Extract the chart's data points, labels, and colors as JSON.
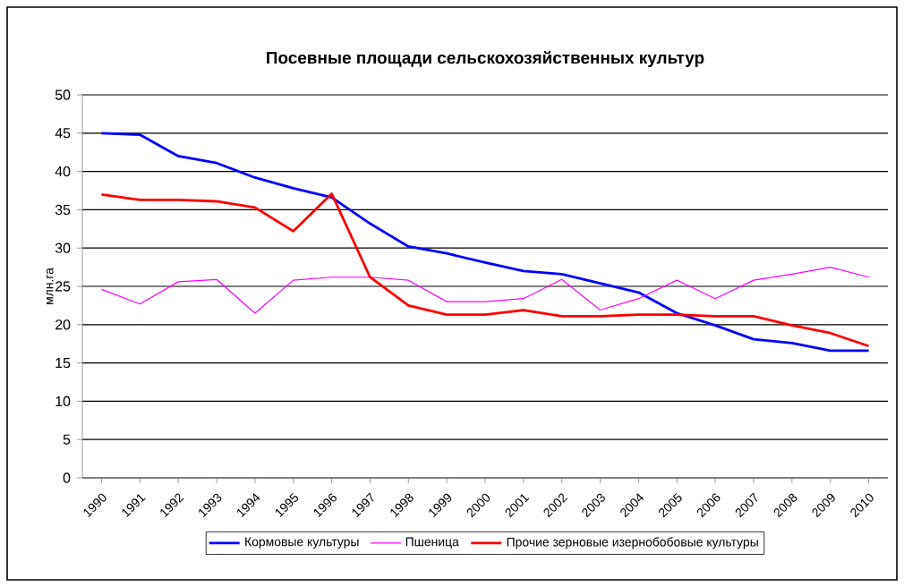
{
  "chart_data": {
    "type": "line",
    "title": "Посевные площади сельскохозяйственных культур",
    "ylabel": "млн.га",
    "categories": [
      "1990",
      "1991",
      "1992",
      "1993",
      "1994",
      "1995",
      "1996",
      "1997",
      "1998",
      "1999",
      "2000",
      "2001",
      "2002",
      "2003",
      "2004",
      "2005",
      "2006",
      "2007",
      "2008",
      "2009",
      "2010"
    ],
    "series": [
      {
        "name": "Кормовые культуры",
        "color": "#0000ff",
        "values": [
          45,
          44.8,
          42,
          41.1,
          39.2,
          37.8,
          36.6,
          33.2,
          30.2,
          29.3,
          28.1,
          27,
          26.6,
          25.4,
          24.2,
          21.5,
          19.9,
          18.1,
          17.6,
          16.6,
          16.6
        ]
      },
      {
        "name": "Пшеница",
        "color": "#ff00ff",
        "values": [
          24.6,
          22.7,
          25.6,
          25.9,
          21.5,
          25.8,
          26.2,
          26.2,
          25.8,
          23,
          23,
          23.4,
          25.9,
          21.9,
          23.4,
          25.8,
          23.4,
          25.8,
          26.6,
          27.5,
          26.2
        ]
      },
      {
        "name": "Прочие зерновые изернобобовые культуры",
        "color": "#ff0000",
        "values": [
          37,
          36.3,
          36.3,
          36.1,
          35.3,
          32.2,
          37.1,
          26.2,
          22.5,
          21.3,
          21.3,
          21.9,
          21.1,
          21.1,
          21.3,
          21.3,
          21.1,
          21.1,
          19.9,
          18.9,
          17.2
        ]
      }
    ],
    "ylim": [
      0,
      50
    ],
    "yticks": [
      0,
      5,
      10,
      15,
      20,
      25,
      30,
      35,
      40,
      45,
      50
    ],
    "grid": "y",
    "legend": "bottom"
  }
}
